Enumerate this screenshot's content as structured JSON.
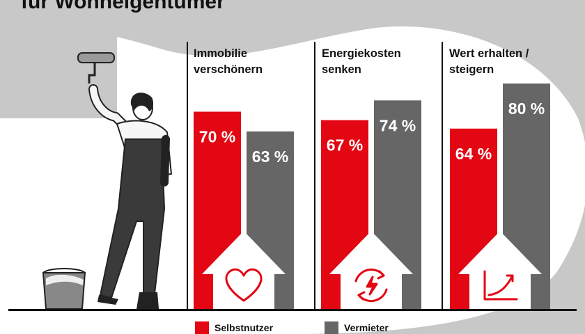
{
  "title": "für Wohneigentümer",
  "colors": {
    "selbstnutzer": "#e30613",
    "vermieter": "#666666",
    "background": "#c9c8c9",
    "panel": "#ffffff"
  },
  "legend": {
    "selbstnutzer": "Selbstnutzer",
    "vermieter": "Vermieter"
  },
  "chart_data": {
    "type": "bar",
    "categories": [
      "Immobilie\nverschönern",
      "Energiekosten\nsenken",
      "Wert erhalten /\nsteigern"
    ],
    "series": [
      {
        "name": "Selbstnutzer",
        "values": [
          70,
          67,
          64
        ],
        "labels": [
          "70 %",
          "67 %",
          "64 %"
        ]
      },
      {
        "name": "Vermieter",
        "values": [
          63,
          74,
          80
        ],
        "labels": [
          "63 %",
          "74 %",
          "80 %"
        ]
      }
    ],
    "unit": "%",
    "icons": [
      "heart-icon",
      "energy-cycle-icon",
      "growth-chart-icon"
    ]
  }
}
